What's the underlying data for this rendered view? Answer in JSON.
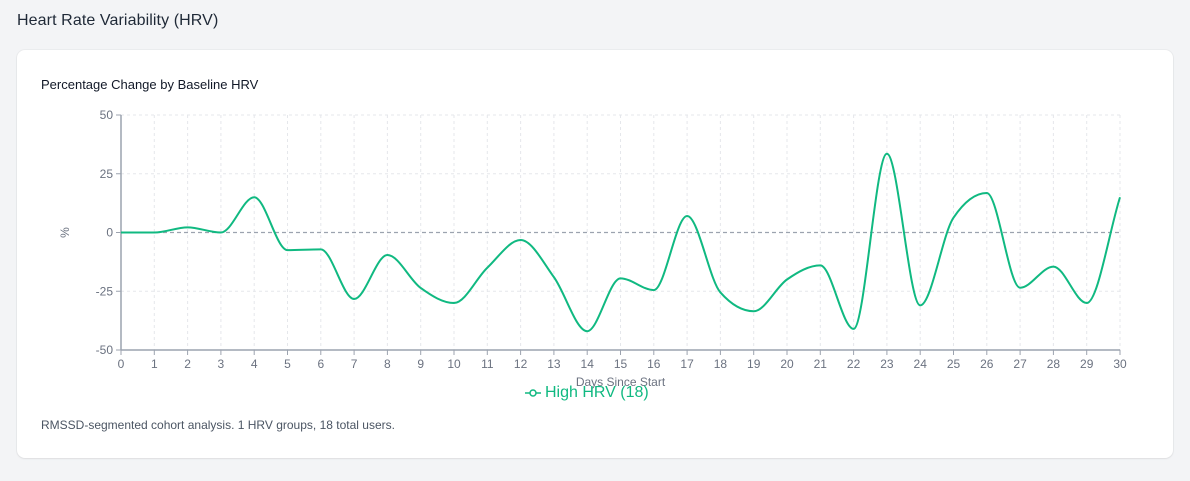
{
  "page": {
    "title": "Heart Rate Variability (HRV)"
  },
  "card": {
    "title": "Percentage Change by Baseline HRV",
    "footnote": "RMSSD-segmented cohort analysis. 1 HRV groups, 18 total users."
  },
  "legend": {
    "items": [
      {
        "label": "High HRV (18)",
        "color": "#10b981",
        "icon": "line-circle-marker-icon"
      }
    ]
  },
  "colors": {
    "series": "#10b981",
    "grid": "#e5e7eb",
    "axis": "#9ca3af",
    "zero_line": "#9ca3af",
    "tick_text": "#6b7280"
  },
  "chart_data": {
    "type": "line",
    "title": "Percentage Change by Baseline HRV",
    "xlabel": "Days Since Start",
    "ylabel": "%",
    "xlim": [
      0,
      30
    ],
    "ylim": [
      -50,
      50
    ],
    "x_ticks": [
      0,
      1,
      2,
      3,
      4,
      5,
      6,
      7,
      8,
      9,
      10,
      11,
      12,
      13,
      14,
      15,
      16,
      17,
      18,
      19,
      20,
      21,
      22,
      23,
      24,
      25,
      26,
      27,
      28,
      29,
      30
    ],
    "y_ticks": [
      50,
      25,
      0,
      -25,
      -50
    ],
    "grid": true,
    "reference_line": {
      "y": 0,
      "style": "dashed"
    },
    "legend_position": "bottom",
    "x": [
      0,
      1,
      2,
      3,
      4,
      5,
      6,
      7,
      8,
      9,
      10,
      11,
      12,
      13,
      14,
      15,
      16,
      17,
      18,
      19,
      20,
      21,
      22,
      23,
      24,
      25,
      26,
      27,
      28,
      29,
      30
    ],
    "series": [
      {
        "name": "High HRV (18)",
        "color": "#10b981",
        "values": [
          0,
          0,
          2.2,
          0,
          15,
          -7.5,
          -7.2,
          -28.3,
          -9.6,
          -23.6,
          -30,
          -15,
          -3.2,
          -19,
          -42,
          -19.5,
          -24.5,
          7,
          -25.5,
          -33.5,
          -20,
          -14,
          -41,
          33.5,
          -31,
          6.3,
          16.8,
          -23.5,
          -14.5,
          -30,
          15
        ]
      }
    ]
  }
}
